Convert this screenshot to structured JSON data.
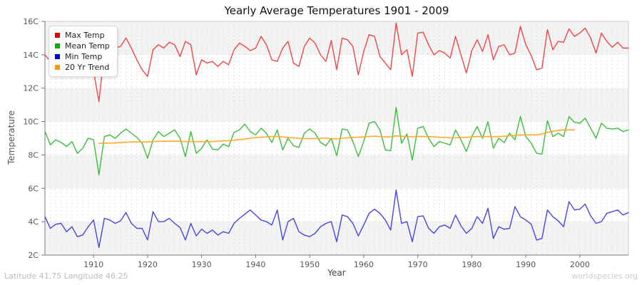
{
  "title": "Yearly Average Temperatures 1901 - 2009",
  "y_axis": {
    "label": "Temperature",
    "tick_labels": [
      "16C",
      "14C",
      "12C",
      "10C",
      "8C",
      "6C",
      "4C",
      "2C"
    ]
  },
  "x_axis": {
    "label": "Year",
    "tick_labels": [
      "1910",
      "1920",
      "1930",
      "1940",
      "1950",
      "1960",
      "1970",
      "1980",
      "1990",
      "2000"
    ]
  },
  "footer": {
    "left": "Latitude 41.75 Longitude 46.25",
    "right": "worldspecies.org"
  },
  "legend": {
    "items": [
      {
        "label": "Max Temp",
        "swatch": "#e80000",
        "line": "#f04646"
      },
      {
        "label": "Mean Temp",
        "swatch": "#00b400",
        "line": "#3cbe3c"
      },
      {
        "label": "Min Temp",
        "swatch": "#0000e8",
        "line": "#4646dc"
      },
      {
        "label": "20 Yr Trend",
        "swatch": "#ff9900",
        "line": "#ffaa28"
      }
    ]
  },
  "colors": {
    "band_gray": "#f3f3f3",
    "band_white": "#ffffff",
    "grid_dash": "#e2e2e2",
    "band_line": "#e9e9e9",
    "border": "#cccccc",
    "axis": "#777777",
    "tick_text": "#555555",
    "title_text": "#111111"
  },
  "chart_data": {
    "type": "line",
    "title": "Yearly Average Temperatures 1901 - 2009",
    "xlabel": "Year",
    "ylabel": "Temperature",
    "x_range": [
      1901,
      2009
    ],
    "y_range": [
      2,
      16
    ],
    "y_tick_step": 2,
    "grid": "vertical dashed line per year; horizontal 2C bands alternating gray/white starting gray at top",
    "legend_position": "top-left",
    "series": [
      {
        "name": "Max Temp",
        "color": "#f04646",
        "start_year": 1901,
        "values": [
          14.0,
          13.6,
          13.0,
          13.3,
          13.0,
          13.1,
          12.9,
          12.9,
          13.1,
          13.0,
          11.2,
          14.2,
          14.3,
          14.4,
          14.5,
          15.0,
          14.4,
          13.7,
          13.1,
          12.7,
          14.3,
          14.6,
          14.4,
          14.75,
          14.6,
          13.9,
          14.8,
          14.6,
          12.8,
          13.7,
          13.5,
          13.6,
          13.3,
          13.6,
          13.4,
          14.3,
          14.7,
          14.5,
          14.25,
          14.4,
          15.1,
          14.6,
          13.7,
          13.6,
          14.4,
          14.8,
          13.5,
          13.3,
          14.5,
          15.0,
          14.7,
          14.0,
          13.6,
          14.85,
          13.1,
          15.0,
          14.9,
          14.5,
          12.8,
          14.2,
          15.2,
          15.1,
          13.9,
          13.5,
          13.1,
          15.9,
          14.0,
          14.3,
          12.7,
          15.3,
          15.35,
          14.6,
          14.0,
          14.25,
          14.1,
          13.8,
          15.1,
          14.0,
          12.9,
          14.25,
          14.9,
          14.2,
          15.2,
          13.7,
          14.5,
          14.6,
          14.0,
          14.1,
          15.7,
          14.6,
          13.95,
          13.1,
          13.2,
          15.5,
          14.3,
          14.8,
          14.75,
          15.55,
          15.1,
          15.3,
          15.6,
          15.0,
          14.1,
          15.3,
          14.8,
          14.45,
          14.75,
          14.4,
          14.4
        ]
      },
      {
        "name": "Mean Temp",
        "color": "#3cbe3c",
        "start_year": 1901,
        "values": [
          9.4,
          8.6,
          8.9,
          8.75,
          8.5,
          8.8,
          8.1,
          8.4,
          9.0,
          8.9,
          6.8,
          9.1,
          9.2,
          9.0,
          9.3,
          9.55,
          9.3,
          9.05,
          8.7,
          7.8,
          8.9,
          9.4,
          9.1,
          9.3,
          9.5,
          9.0,
          7.9,
          9.4,
          8.1,
          8.4,
          8.9,
          8.35,
          8.3,
          8.65,
          8.5,
          9.35,
          9.5,
          9.85,
          9.4,
          9.2,
          9.6,
          9.3,
          8.75,
          9.5,
          8.3,
          9.0,
          8.55,
          8.45,
          9.3,
          9.55,
          9.3,
          8.75,
          8.55,
          9.0,
          7.95,
          9.55,
          9.5,
          8.8,
          7.9,
          8.8,
          9.9,
          10.0,
          9.5,
          8.3,
          8.25,
          10.85,
          8.7,
          9.25,
          7.7,
          9.6,
          9.7,
          9.0,
          8.5,
          8.8,
          8.7,
          8.6,
          9.5,
          8.9,
          8.2,
          9.1,
          9.7,
          9.0,
          10.0,
          8.4,
          9.0,
          8.75,
          9.3,
          8.9,
          10.3,
          9.1,
          8.7,
          8.1,
          8.05,
          10.05,
          9.1,
          9.3,
          9.1,
          10.3,
          9.95,
          9.9,
          10.2,
          9.6,
          9.0,
          9.9,
          9.6,
          9.55,
          9.6,
          9.4,
          9.5
        ]
      },
      {
        "name": "Min Temp",
        "color": "#4646dc",
        "start_year": 1901,
        "values": [
          4.3,
          3.6,
          3.85,
          3.9,
          3.4,
          3.7,
          3.1,
          3.2,
          3.7,
          4.1,
          2.45,
          4.2,
          4.1,
          3.9,
          4.05,
          4.55,
          3.9,
          3.6,
          3.6,
          2.9,
          4.6,
          4.0,
          4.0,
          4.2,
          3.9,
          3.65,
          2.9,
          3.9,
          3.15,
          3.55,
          3.3,
          3.5,
          3.2,
          3.4,
          3.3,
          3.9,
          4.2,
          4.45,
          4.7,
          4.4,
          4.1,
          4.0,
          3.8,
          4.7,
          2.9,
          4.0,
          4.2,
          3.4,
          3.2,
          3.1,
          3.3,
          3.7,
          3.9,
          4.0,
          2.8,
          4.4,
          4.3,
          3.9,
          3.15,
          3.8,
          4.5,
          4.75,
          4.5,
          4.1,
          3.5,
          5.9,
          3.9,
          4.0,
          2.8,
          4.3,
          4.35,
          3.6,
          3.3,
          3.7,
          3.8,
          3.6,
          4.4,
          3.75,
          3.3,
          3.6,
          4.3,
          3.9,
          4.8,
          3.0,
          3.7,
          3.55,
          3.6,
          4.9,
          4.3,
          4.1,
          3.85,
          2.9,
          3.0,
          4.7,
          4.3,
          4.05,
          3.7,
          5.2,
          4.7,
          4.75,
          5.05,
          4.35,
          3.9,
          4.0,
          4.5,
          4.6,
          4.7,
          4.4,
          4.55
        ]
      },
      {
        "name": "20 Yr Trend",
        "color": "#ffaa28",
        "start_year": 1911,
        "values": [
          8.7,
          8.7,
          8.7,
          8.72,
          8.74,
          8.76,
          8.78,
          8.78,
          8.78,
          8.78,
          8.8,
          8.82,
          8.82,
          8.82,
          8.82,
          8.82,
          8.8,
          8.8,
          8.8,
          8.8,
          8.8,
          8.8,
          8.82,
          8.84,
          8.85,
          8.88,
          8.92,
          8.95,
          9.0,
          9.04,
          9.06,
          9.08,
          9.1,
          9.1,
          9.08,
          9.05,
          9.02,
          9.0,
          8.98,
          8.98,
          8.98,
          9.0,
          9.0,
          8.98,
          8.96,
          9.0,
          9.02,
          9.05,
          9.06,
          9.08,
          9.1,
          9.12,
          9.1,
          9.08,
          9.08,
          9.14,
          9.12,
          9.1,
          9.08,
          9.1,
          9.1,
          9.1,
          9.08,
          9.06,
          9.05,
          9.02,
          9.02,
          9.04,
          9.05,
          9.08,
          9.1,
          9.1,
          9.1,
          9.08,
          9.1,
          9.12,
          9.15,
          9.18,
          9.2,
          9.2,
          9.2,
          9.2,
          9.25,
          9.35,
          9.42,
          9.46,
          9.5,
          9.5,
          9.5
        ]
      }
    ]
  }
}
